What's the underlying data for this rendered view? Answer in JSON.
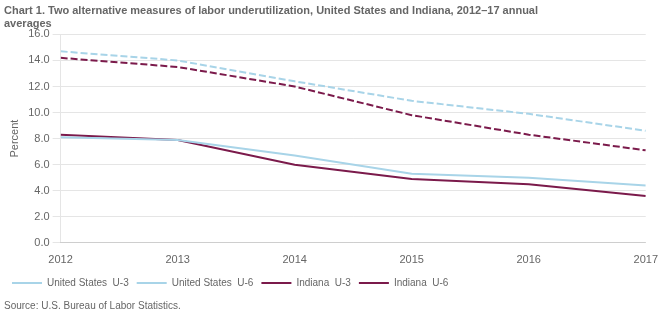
{
  "chart_data": {
    "type": "line",
    "title": [
      "Chart 1. Two alternative measures of labor underutilization, United States and Indiana, 2012–17 annual",
      "averages"
    ],
    "ylabel": "Percent",
    "annotations": [
      "Source: U.S. Bureau of Labor Statistics."
    ],
    "x": [
      2012,
      2013,
      2014,
      2015,
      2016,
      2017
    ],
    "xlim": [
      2012,
      2017
    ],
    "xticks": [
      2012,
      2013,
      2014,
      2015,
      2016,
      2017
    ],
    "ylim": [
      0,
      16
    ],
    "yticks": [
      {
        "value": 0,
        "label": "0.0"
      },
      {
        "value": 2,
        "label": "2.0"
      },
      {
        "value": 4,
        "label": "4.0"
      },
      {
        "value": 6,
        "label": "6.0"
      },
      {
        "value": 8,
        "label": "8.0"
      },
      {
        "value": 10,
        "label": "10.0"
      },
      {
        "value": 12,
        "label": "12.0"
      },
      {
        "value": 14,
        "label": "14.0"
      },
      {
        "value": 16,
        "label": "16.0"
      }
    ],
    "grid": "y",
    "legend": "lower left",
    "series": [
      {
        "name": "United States  U-3",
        "color": "#a8d4e8",
        "line_style": "solid",
        "values": [
          8.1,
          7.9,
          6.7,
          5.3,
          5.0,
          4.4
        ]
      },
      {
        "name": "United States  U-6",
        "color": "#a8d4e8",
        "line_style": "dashed",
        "values": [
          14.7,
          14.0,
          12.4,
          10.9,
          9.9,
          8.6
        ]
      },
      {
        "name": "Indiana  U-3",
        "color": "#7b1a4b",
        "line_style": "solid",
        "values": [
          8.3,
          7.9,
          6.0,
          4.9,
          4.5,
          3.6
        ]
      },
      {
        "name": "Indiana  U-6",
        "color": "#7b1a4b",
        "line_style": "dashed",
        "values": [
          14.2,
          13.5,
          12.0,
          9.8,
          8.3,
          7.1
        ]
      }
    ]
  }
}
